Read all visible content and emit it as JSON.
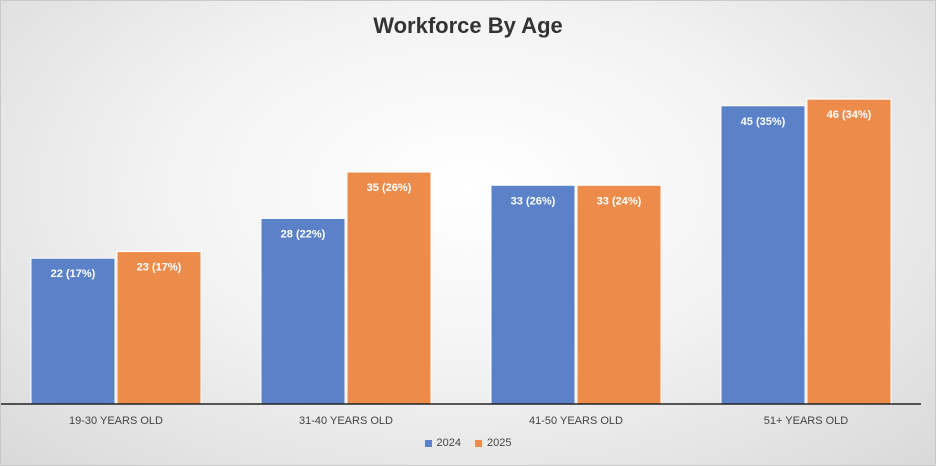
{
  "chart_data": {
    "type": "bar",
    "title": "Workforce By Age",
    "xlabel": "",
    "ylabel": "",
    "categories": [
      "19-30 YEARS OLD",
      "31-40 YEARS OLD",
      "41-50 YEARS OLD",
      "51+ YEARS OLD"
    ],
    "series": [
      {
        "name": "2024",
        "color": "#5b82c8",
        "values": [
          22,
          28,
          33,
          45
        ],
        "data_labels": [
          "22 (17%)",
          "28 (22%)",
          "33 (26%)",
          "45 (35%)"
        ]
      },
      {
        "name": "2025",
        "color": "#ed8c4a",
        "values": [
          23,
          35,
          33,
          46
        ],
        "data_labels": [
          "23 (17%)",
          "35 (26%)",
          "33 (24%)",
          "46 (34%)"
        ]
      }
    ],
    "ylim": [
      0,
      51
    ],
    "grid": false,
    "y_axis_visible": false,
    "legend_position": "bottom"
  }
}
